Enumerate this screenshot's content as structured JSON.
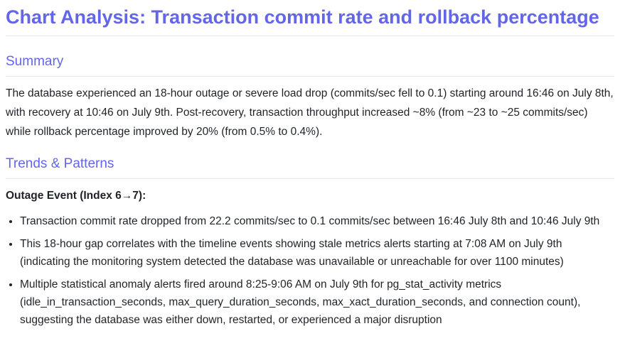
{
  "header": {
    "title": "Chart Analysis: Transaction commit rate and rollback percentage"
  },
  "summary": {
    "heading": "Summary",
    "text": "The database experienced an 18-hour outage or severe load drop (commits/sec fell to 0.1) starting around 16:46 on July 8th, with recovery at 10:46 on July 9th. Post-recovery, transaction throughput increased ~8% (from ~23 to ~25 commits/sec) while rollback percentage improved by 20% (from 0.5% to 0.4%)."
  },
  "trends": {
    "heading": "Trends & Patterns",
    "subheading": "Outage Event (Index 6→7):",
    "bullets": [
      "Transaction commit rate dropped from 22.2 commits/sec to 0.1 commits/sec between 16:46 July 8th and 10:46 July 9th",
      "This 18-hour gap correlates with the timeline events showing stale metrics alerts starting at 7:08 AM on July 9th (indicating the monitoring system detected the database was unavailable or unreachable for over 1100 minutes)",
      "Multiple statistical anomaly alerts fired around 8:25-9:06 AM on July 9th for pg_stat_activity metrics (idle_in_transaction_seconds, max_query_duration_seconds, max_xact_duration_seconds, and connection count), suggesting the database was either down, restarted, or experienced a major disruption"
    ]
  }
}
